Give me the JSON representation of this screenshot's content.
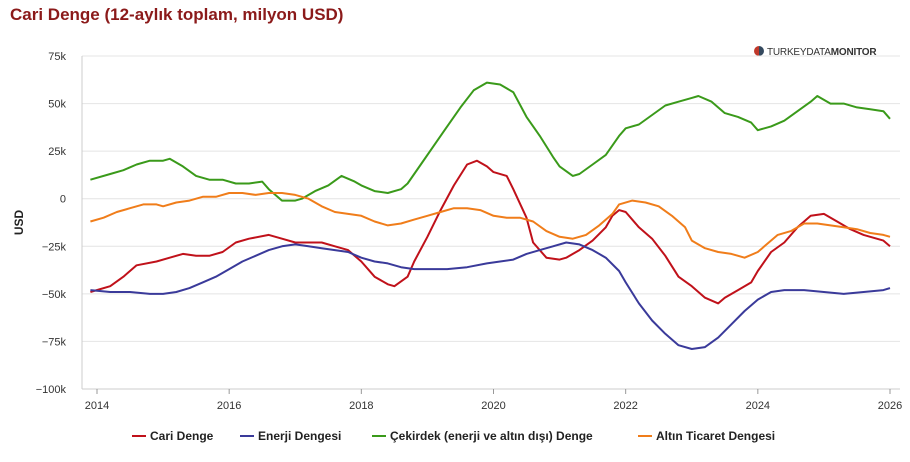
{
  "title": "Cari Denge (12-aylık toplam, milyon USD)",
  "watermark": {
    "part1": "TURKEY",
    "part2": "DATA",
    "part3": "MONITOR"
  },
  "chart_data": {
    "type": "line",
    "title": "Cari Denge (12-aylık toplam, milyon USD)",
    "xlabel": "",
    "ylabel": "USD",
    "ylim": [
      -100000,
      75000
    ],
    "xlim": [
      2014,
      2026.2
    ],
    "y_ticks": [
      75000,
      50000,
      25000,
      0,
      -25000,
      -50000,
      -75000,
      -100000
    ],
    "y_tick_labels": [
      "75k",
      "50k",
      "25k",
      "0",
      "−25k",
      "−50k",
      "−75k",
      "−100k"
    ],
    "x_ticks": [
      2014,
      2016,
      2018,
      2020,
      2022,
      2024,
      2026
    ],
    "x_tick_labels": [
      "2014",
      "2016",
      "2018",
      "2020",
      "2022",
      "2024",
      "2026"
    ],
    "grid": true,
    "legend_position": "bottom",
    "series": [
      {
        "name": "Cari Denge",
        "color": "#c0111a",
        "points": [
          [
            2013.9,
            -49000
          ],
          [
            2014.2,
            -46000
          ],
          [
            2014.4,
            -41000
          ],
          [
            2014.6,
            -35000
          ],
          [
            2014.9,
            -33000
          ],
          [
            2015.1,
            -31000
          ],
          [
            2015.3,
            -29000
          ],
          [
            2015.5,
            -30000
          ],
          [
            2015.7,
            -30000
          ],
          [
            2015.9,
            -28000
          ],
          [
            2016.1,
            -23000
          ],
          [
            2016.3,
            -21000
          ],
          [
            2016.6,
            -19000
          ],
          [
            2016.8,
            -21000
          ],
          [
            2017.0,
            -23000
          ],
          [
            2017.2,
            -23000
          ],
          [
            2017.4,
            -23000
          ],
          [
            2017.6,
            -25000
          ],
          [
            2017.8,
            -27000
          ],
          [
            2018.0,
            -33000
          ],
          [
            2018.2,
            -41000
          ],
          [
            2018.4,
            -45000
          ],
          [
            2018.5,
            -46000
          ],
          [
            2018.7,
            -41000
          ],
          [
            2018.8,
            -33000
          ],
          [
            2019.0,
            -20000
          ],
          [
            2019.2,
            -6000
          ],
          [
            2019.4,
            7000
          ],
          [
            2019.6,
            18000
          ],
          [
            2019.75,
            20000
          ],
          [
            2019.9,
            17000
          ],
          [
            2020.0,
            14000
          ],
          [
            2020.2,
            12000
          ],
          [
            2020.3,
            5000
          ],
          [
            2020.5,
            -10000
          ],
          [
            2020.6,
            -23000
          ],
          [
            2020.8,
            -31000
          ],
          [
            2021.0,
            -32000
          ],
          [
            2021.1,
            -31000
          ],
          [
            2021.3,
            -27000
          ],
          [
            2021.5,
            -22000
          ],
          [
            2021.7,
            -15000
          ],
          [
            2021.8,
            -9000
          ],
          [
            2021.9,
            -6000
          ],
          [
            2022.0,
            -7000
          ],
          [
            2022.2,
            -15000
          ],
          [
            2022.4,
            -21000
          ],
          [
            2022.6,
            -30000
          ],
          [
            2022.8,
            -41000
          ],
          [
            2023.0,
            -46000
          ],
          [
            2023.2,
            -52000
          ],
          [
            2023.4,
            -55000
          ],
          [
            2023.5,
            -52000
          ],
          [
            2023.7,
            -48000
          ],
          [
            2023.9,
            -44000
          ],
          [
            2024.0,
            -38000
          ],
          [
            2024.2,
            -28000
          ],
          [
            2024.4,
            -23000
          ],
          [
            2024.6,
            -15000
          ],
          [
            2024.8,
            -9000
          ],
          [
            2025.0,
            -8000
          ],
          [
            2025.2,
            -12000
          ],
          [
            2025.4,
            -16000
          ],
          [
            2025.6,
            -19000
          ],
          [
            2025.8,
            -21000
          ],
          [
            2025.9,
            -22000
          ],
          [
            2026.0,
            -25000
          ]
        ]
      },
      {
        "name": "Enerji Dengesi",
        "color": "#3a3a9a",
        "points": [
          [
            2013.9,
            -48000
          ],
          [
            2014.2,
            -49000
          ],
          [
            2014.5,
            -49000
          ],
          [
            2014.8,
            -50000
          ],
          [
            2015.0,
            -50000
          ],
          [
            2015.2,
            -49000
          ],
          [
            2015.4,
            -47000
          ],
          [
            2015.6,
            -44000
          ],
          [
            2015.8,
            -41000
          ],
          [
            2016.0,
            -37000
          ],
          [
            2016.2,
            -33000
          ],
          [
            2016.4,
            -30000
          ],
          [
            2016.6,
            -27000
          ],
          [
            2016.8,
            -25000
          ],
          [
            2017.0,
            -24000
          ],
          [
            2017.2,
            -25000
          ],
          [
            2017.4,
            -26000
          ],
          [
            2017.6,
            -27000
          ],
          [
            2017.8,
            -28000
          ],
          [
            2018.0,
            -31000
          ],
          [
            2018.2,
            -33000
          ],
          [
            2018.4,
            -34000
          ],
          [
            2018.6,
            -36000
          ],
          [
            2018.8,
            -37000
          ],
          [
            2019.0,
            -37000
          ],
          [
            2019.3,
            -37000
          ],
          [
            2019.6,
            -36000
          ],
          [
            2019.9,
            -34000
          ],
          [
            2020.1,
            -33000
          ],
          [
            2020.3,
            -32000
          ],
          [
            2020.5,
            -29000
          ],
          [
            2020.7,
            -27000
          ],
          [
            2020.9,
            -25000
          ],
          [
            2021.1,
            -23000
          ],
          [
            2021.3,
            -24000
          ],
          [
            2021.5,
            -27000
          ],
          [
            2021.7,
            -31000
          ],
          [
            2021.9,
            -38000
          ],
          [
            2022.0,
            -44000
          ],
          [
            2022.2,
            -55000
          ],
          [
            2022.4,
            -64000
          ],
          [
            2022.6,
            -71000
          ],
          [
            2022.8,
            -77000
          ],
          [
            2023.0,
            -79000
          ],
          [
            2023.2,
            -78000
          ],
          [
            2023.4,
            -73000
          ],
          [
            2023.6,
            -66000
          ],
          [
            2023.8,
            -59000
          ],
          [
            2024.0,
            -53000
          ],
          [
            2024.2,
            -49000
          ],
          [
            2024.4,
            -48000
          ],
          [
            2024.7,
            -48000
          ],
          [
            2025.0,
            -49000
          ],
          [
            2025.3,
            -50000
          ],
          [
            2025.6,
            -49000
          ],
          [
            2025.9,
            -48000
          ],
          [
            2026.0,
            -47000
          ]
        ]
      },
      {
        "name": "Çekirdek (enerji ve altın dışı) Denge",
        "color": "#3a9a1a",
        "points": [
          [
            2013.9,
            10000
          ],
          [
            2014.2,
            13000
          ],
          [
            2014.4,
            15000
          ],
          [
            2014.6,
            18000
          ],
          [
            2014.8,
            20000
          ],
          [
            2015.0,
            20000
          ],
          [
            2015.1,
            21000
          ],
          [
            2015.3,
            17000
          ],
          [
            2015.5,
            12000
          ],
          [
            2015.7,
            10000
          ],
          [
            2015.9,
            10000
          ],
          [
            2016.1,
            8000
          ],
          [
            2016.3,
            8000
          ],
          [
            2016.5,
            9000
          ],
          [
            2016.6,
            5000
          ],
          [
            2016.8,
            -1000
          ],
          [
            2017.0,
            -1000
          ],
          [
            2017.1,
            0
          ],
          [
            2017.3,
            4000
          ],
          [
            2017.5,
            7000
          ],
          [
            2017.7,
            12000
          ],
          [
            2017.9,
            9000
          ],
          [
            2018.0,
            7000
          ],
          [
            2018.2,
            4000
          ],
          [
            2018.4,
            3000
          ],
          [
            2018.6,
            5000
          ],
          [
            2018.7,
            8000
          ],
          [
            2018.9,
            18000
          ],
          [
            2019.1,
            28000
          ],
          [
            2019.3,
            38000
          ],
          [
            2019.5,
            48000
          ],
          [
            2019.7,
            57000
          ],
          [
            2019.9,
            61000
          ],
          [
            2020.1,
            60000
          ],
          [
            2020.3,
            56000
          ],
          [
            2020.5,
            43000
          ],
          [
            2020.7,
            33000
          ],
          [
            2020.9,
            22000
          ],
          [
            2021.0,
            17000
          ],
          [
            2021.2,
            12000
          ],
          [
            2021.3,
            13000
          ],
          [
            2021.5,
            18000
          ],
          [
            2021.7,
            23000
          ],
          [
            2021.9,
            33000
          ],
          [
            2022.0,
            37000
          ],
          [
            2022.2,
            39000
          ],
          [
            2022.4,
            44000
          ],
          [
            2022.6,
            49000
          ],
          [
            2022.8,
            51000
          ],
          [
            2023.0,
            53000
          ],
          [
            2023.1,
            54000
          ],
          [
            2023.3,
            51000
          ],
          [
            2023.5,
            45000
          ],
          [
            2023.7,
            43000
          ],
          [
            2023.9,
            40000
          ],
          [
            2024.0,
            36000
          ],
          [
            2024.2,
            38000
          ],
          [
            2024.4,
            41000
          ],
          [
            2024.6,
            46000
          ],
          [
            2024.8,
            51000
          ],
          [
            2024.9,
            54000
          ],
          [
            2025.1,
            50000
          ],
          [
            2025.3,
            50000
          ],
          [
            2025.5,
            48000
          ],
          [
            2025.7,
            47000
          ],
          [
            2025.9,
            46000
          ],
          [
            2026.0,
            42000
          ]
        ]
      },
      {
        "name": "Altın Ticaret Dengesi",
        "color": "#f07d1a",
        "points": [
          [
            2013.9,
            -12000
          ],
          [
            2014.1,
            -10000
          ],
          [
            2014.3,
            -7000
          ],
          [
            2014.5,
            -5000
          ],
          [
            2014.7,
            -3000
          ],
          [
            2014.9,
            -3000
          ],
          [
            2015.0,
            -4000
          ],
          [
            2015.2,
            -2000
          ],
          [
            2015.4,
            -1000
          ],
          [
            2015.6,
            1000
          ],
          [
            2015.8,
            1000
          ],
          [
            2016.0,
            3000
          ],
          [
            2016.2,
            3000
          ],
          [
            2016.4,
            2000
          ],
          [
            2016.6,
            3000
          ],
          [
            2016.8,
            3000
          ],
          [
            2017.0,
            2000
          ],
          [
            2017.2,
            0
          ],
          [
            2017.4,
            -4000
          ],
          [
            2017.6,
            -7000
          ],
          [
            2017.8,
            -8000
          ],
          [
            2018.0,
            -9000
          ],
          [
            2018.2,
            -12000
          ],
          [
            2018.4,
            -14000
          ],
          [
            2018.6,
            -13000
          ],
          [
            2018.8,
            -11000
          ],
          [
            2019.0,
            -9000
          ],
          [
            2019.2,
            -7000
          ],
          [
            2019.4,
            -5000
          ],
          [
            2019.6,
            -5000
          ],
          [
            2019.8,
            -6000
          ],
          [
            2020.0,
            -9000
          ],
          [
            2020.2,
            -10000
          ],
          [
            2020.4,
            -10000
          ],
          [
            2020.6,
            -12000
          ],
          [
            2020.8,
            -17000
          ],
          [
            2021.0,
            -20000
          ],
          [
            2021.2,
            -21000
          ],
          [
            2021.4,
            -19000
          ],
          [
            2021.6,
            -14000
          ],
          [
            2021.8,
            -8000
          ],
          [
            2021.9,
            -3000
          ],
          [
            2022.1,
            -1000
          ],
          [
            2022.3,
            -2000
          ],
          [
            2022.5,
            -4000
          ],
          [
            2022.7,
            -9000
          ],
          [
            2022.9,
            -15000
          ],
          [
            2023.0,
            -22000
          ],
          [
            2023.2,
            -26000
          ],
          [
            2023.4,
            -28000
          ],
          [
            2023.6,
            -29000
          ],
          [
            2023.8,
            -31000
          ],
          [
            2024.0,
            -28000
          ],
          [
            2024.1,
            -25000
          ],
          [
            2024.3,
            -19000
          ],
          [
            2024.5,
            -17000
          ],
          [
            2024.7,
            -13000
          ],
          [
            2024.9,
            -13000
          ],
          [
            2025.1,
            -14000
          ],
          [
            2025.3,
            -15000
          ],
          [
            2025.5,
            -16000
          ],
          [
            2025.7,
            -18000
          ],
          [
            2025.9,
            -19000
          ],
          [
            2026.0,
            -20000
          ]
        ]
      }
    ]
  }
}
